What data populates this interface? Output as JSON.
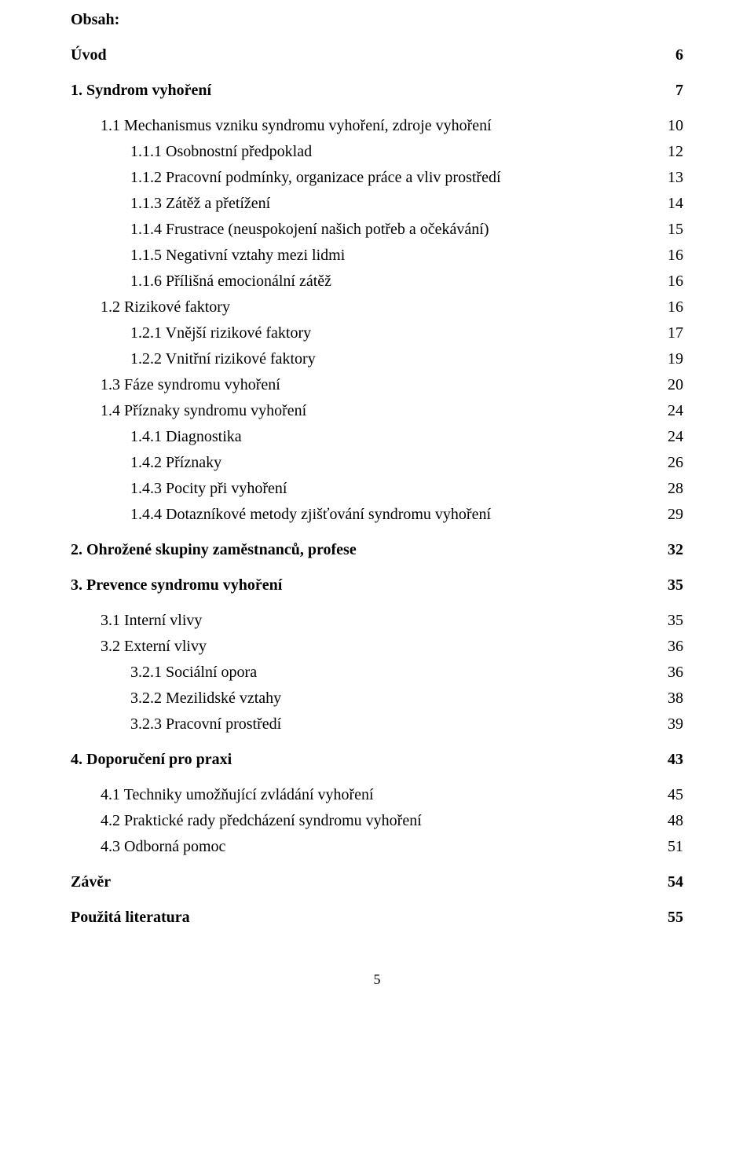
{
  "heading": "Obsah:",
  "page_number": "5",
  "toc": [
    {
      "label": "Úvod",
      "page": "6",
      "level": 0,
      "bold": true,
      "spacer": false
    },
    {
      "label": "1.    Syndrom vyhoření",
      "page": "7",
      "level": 0,
      "bold": true,
      "spacer": true
    },
    {
      "label": "1.1    Mechanismus vzniku syndromu vyhoření, zdroje vyhoření",
      "page": "10",
      "level": 1,
      "bold": false,
      "spacer": true
    },
    {
      "label": "1.1.1    Osobnostní předpoklad",
      "page": "12",
      "level": 2,
      "bold": false,
      "spacer": false
    },
    {
      "label": "1.1.2    Pracovní podmínky, organizace práce a vliv prostředí",
      "page": "13",
      "level": 2,
      "bold": false,
      "spacer": false
    },
    {
      "label": "1.1.3    Zátěž a přetížení",
      "page": "14",
      "level": 2,
      "bold": false,
      "spacer": false
    },
    {
      "label": "1.1.4    Frustrace (neuspokojení našich potřeb a očekávání)",
      "page": "15",
      "level": 2,
      "bold": false,
      "spacer": false
    },
    {
      "label": "1.1.5    Negativní vztahy mezi lidmi",
      "page": "16",
      "level": 2,
      "bold": false,
      "spacer": false
    },
    {
      "label": "1.1.6    Přílišná emocionální zátěž",
      "page": "16",
      "level": 2,
      "bold": false,
      "spacer": false
    },
    {
      "label": "1.2    Rizikové faktory",
      "page": "16",
      "level": 1,
      "bold": false,
      "spacer": false
    },
    {
      "label": "1.2.1    Vnější rizikové faktory",
      "page": "17",
      "level": 2,
      "bold": false,
      "spacer": false
    },
    {
      "label": "1.2.2    Vnitřní rizikové faktory",
      "page": "19",
      "level": 2,
      "bold": false,
      "spacer": false
    },
    {
      "label": "1.3    Fáze syndromu vyhoření",
      "page": "20",
      "level": 1,
      "bold": false,
      "spacer": false
    },
    {
      "label": "1.4    Příznaky syndromu vyhoření",
      "page": "24",
      "level": 1,
      "bold": false,
      "spacer": false
    },
    {
      "label": "1.4.1    Diagnostika",
      "page": "24",
      "level": 2,
      "bold": false,
      "spacer": false
    },
    {
      "label": "1.4.2    Příznaky",
      "page": "26",
      "level": 2,
      "bold": false,
      "spacer": false
    },
    {
      "label": "1.4.3    Pocity při vyhoření",
      "page": "28",
      "level": 2,
      "bold": false,
      "spacer": false
    },
    {
      "label": "1.4.4    Dotazníkové metody zjišťování syndromu vyhoření",
      "page": "29",
      "level": 2,
      "bold": false,
      "spacer": false
    },
    {
      "label": "2.    Ohrožené skupiny zaměstnanců, profese",
      "page": "32",
      "level": 0,
      "bold": true,
      "spacer": true
    },
    {
      "label": "3.    Prevence syndromu vyhoření",
      "page": "35",
      "level": 0,
      "bold": true,
      "spacer": true
    },
    {
      "label": "3.1    Interní vlivy",
      "page": "35",
      "level": 1,
      "bold": false,
      "spacer": true
    },
    {
      "label": "3.2    Externí vlivy",
      "page": "36",
      "level": 1,
      "bold": false,
      "spacer": false
    },
    {
      "label": "3.2.1    Sociální opora",
      "page": "36",
      "level": 2,
      "bold": false,
      "spacer": false
    },
    {
      "label": "3.2.2    Mezilidské vztahy",
      "page": "38",
      "level": 2,
      "bold": false,
      "spacer": false
    },
    {
      "label": "3.2.3    Pracovní prostředí",
      "page": "39",
      "level": 2,
      "bold": false,
      "spacer": false
    },
    {
      "label": "4.    Doporučení pro praxi",
      "page": "43",
      "level": 0,
      "bold": true,
      "spacer": true
    },
    {
      "label": "4.1    Techniky umožňující zvládání vyhoření",
      "page": "45",
      "level": 1,
      "bold": false,
      "spacer": true
    },
    {
      "label": "4.2    Praktické rady předcházení syndromu vyhoření",
      "page": "48",
      "level": 1,
      "bold": false,
      "spacer": false
    },
    {
      "label": "4.3    Odborná pomoc",
      "page": "51",
      "level": 1,
      "bold": false,
      "spacer": false
    },
    {
      "label": "Závěr",
      "page": "54",
      "level": 0,
      "bold": true,
      "spacer": true
    },
    {
      "label": "Použitá literatura",
      "page": "55",
      "level": 0,
      "bold": true,
      "spacer": true
    }
  ]
}
